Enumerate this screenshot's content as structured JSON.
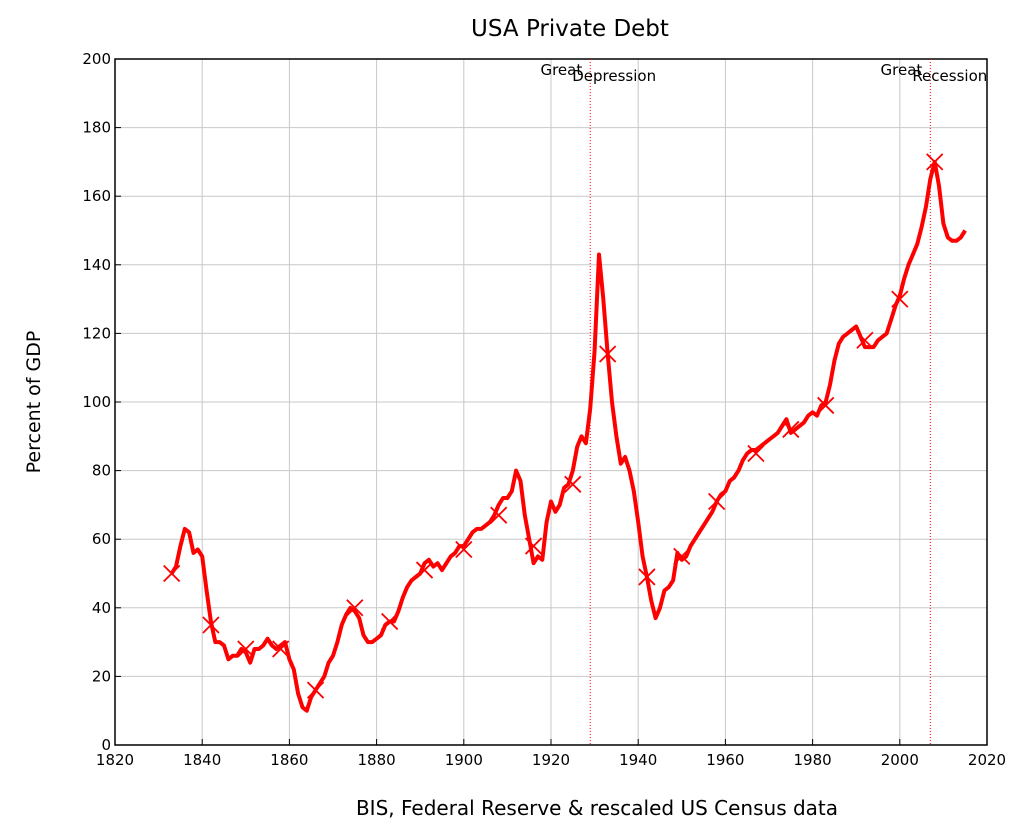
{
  "chart_data": {
    "type": "line",
    "title": "USA Private Debt",
    "ylabel": "Percent of GDP",
    "xlabel": "BIS, Federal Reserve & rescaled US Census data",
    "color": "#ff0000",
    "x": [
      1833,
      1834,
      1835,
      1836,
      1837,
      1838,
      1839,
      1840,
      1841,
      1842,
      1843,
      1844,
      1845,
      1846,
      1847,
      1848,
      1849,
      1850,
      1851,
      1852,
      1853,
      1854,
      1855,
      1856,
      1857,
      1858,
      1859,
      1860,
      1861,
      1862,
      1863,
      1864,
      1865,
      1866,
      1867,
      1868,
      1869,
      1870,
      1871,
      1872,
      1873,
      1874,
      1875,
      1876,
      1877,
      1878,
      1879,
      1880,
      1881,
      1882,
      1883,
      1884,
      1885,
      1886,
      1887,
      1888,
      1889,
      1890,
      1891,
      1892,
      1893,
      1894,
      1895,
      1896,
      1897,
      1898,
      1899,
      1900,
      1901,
      1902,
      1903,
      1904,
      1905,
      1906,
      1907,
      1908,
      1909,
      1910,
      1911,
      1912,
      1913,
      1914,
      1915,
      1916,
      1917,
      1918,
      1919,
      1920,
      1921,
      1922,
      1923,
      1924,
      1925,
      1926,
      1927,
      1928,
      1929,
      1930,
      1931,
      1932,
      1933,
      1934,
      1935,
      1936,
      1937,
      1938,
      1939,
      1940,
      1941,
      1942,
      1943,
      1944,
      1945,
      1946,
      1947,
      1948,
      1949,
      1950,
      1951,
      1952,
      1953,
      1954,
      1955,
      1956,
      1957,
      1958,
      1959,
      1960,
      1961,
      1962,
      1963,
      1964,
      1965,
      1966,
      1967,
      1968,
      1969,
      1970,
      1971,
      1972,
      1973,
      1974,
      1975,
      1976,
      1977,
      1978,
      1979,
      1980,
      1981,
      1982,
      1983,
      1984,
      1985,
      1986,
      1987,
      1988,
      1989,
      1990,
      1991,
      1992,
      1993,
      1994,
      1995,
      1996,
      1997,
      1998,
      1999,
      2000,
      2001,
      2002,
      2003,
      2004,
      2005,
      2006,
      2007,
      2008,
      2009,
      2010,
      2011,
      2012,
      2013,
      2014,
      2015
    ],
    "values": [
      50,
      52,
      58,
      63,
      62,
      56,
      57,
      55,
      45,
      36,
      30,
      30,
      29,
      25,
      26,
      26,
      28,
      27,
      24,
      28,
      28,
      29,
      31,
      29,
      28,
      29,
      30,
      25,
      22,
      15,
      11,
      10,
      14,
      16,
      18,
      20,
      24,
      26,
      30,
      35,
      38,
      40,
      39,
      37,
      32,
      30,
      30,
      31,
      32,
      35,
      36,
      36,
      39,
      43,
      46,
      48,
      49,
      50,
      53,
      54,
      52,
      53,
      51,
      53,
      55,
      56,
      58,
      58,
      60,
      62,
      63,
      63,
      64,
      65,
      67,
      70,
      72,
      72,
      74,
      80,
      77,
      67,
      60,
      53,
      55,
      54,
      65,
      71,
      68,
      70,
      75,
      76,
      80,
      87,
      90,
      88,
      98,
      115,
      143,
      130,
      114,
      100,
      90,
      82,
      84,
      80,
      74,
      65,
      55,
      49,
      42,
      37,
      40,
      45,
      46,
      48,
      56,
      54,
      55,
      58,
      60,
      62,
      64,
      66,
      68,
      71,
      73,
      74,
      77,
      78,
      80,
      83,
      85,
      86,
      86,
      87,
      88,
      89,
      90,
      91,
      93,
      95,
      91,
      92,
      93,
      94,
      96,
      97,
      96,
      99,
      100,
      105,
      112,
      117,
      119,
      120,
      121,
      122,
      119,
      116,
      116,
      116,
      118,
      119,
      120,
      124,
      128,
      131,
      136,
      140,
      143,
      146,
      151,
      157,
      165,
      170,
      163,
      152,
      148,
      147,
      147,
      148,
      150
    ],
    "markers": {
      "x": [
        1833,
        1842,
        1850,
        1858,
        1866,
        1875,
        1883,
        1891,
        1900,
        1908,
        1916,
        1925,
        1933,
        1942,
        1950,
        1958,
        1967,
        1975,
        1983,
        1992,
        2000,
        2008
      ],
      "values": [
        50,
        35,
        28,
        28,
        16,
        40,
        36,
        51,
        57,
        67,
        58,
        76,
        114,
        49,
        55,
        71,
        85,
        92,
        99,
        118,
        130,
        170
      ]
    },
    "annotations": [
      {
        "x": 1929,
        "text": [
          "Great",
          "Depression"
        ]
      },
      {
        "x": 2007,
        "text": [
          "Great",
          "Recession"
        ]
      }
    ],
    "xlim": [
      1820,
      2020
    ],
    "xticks": [
      1820,
      1840,
      1860,
      1880,
      1900,
      1920,
      1940,
      1960,
      1980,
      2000,
      2020
    ],
    "ylim": [
      0,
      200
    ],
    "yticks": [
      0,
      20,
      40,
      60,
      80,
      100,
      120,
      140,
      160,
      180,
      200
    ],
    "grid": true
  }
}
